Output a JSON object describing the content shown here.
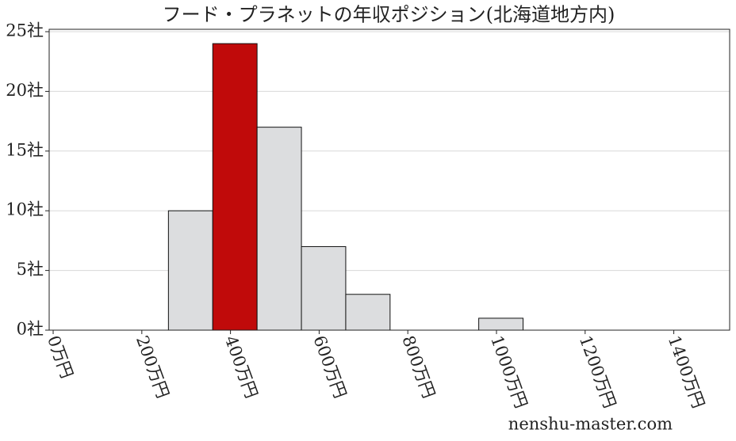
{
  "chart_data": {
    "type": "histogram",
    "title": "フード・プラネットの年収ポジション(北海道地方内)",
    "bins": [
      260,
      360,
      460,
      560,
      660,
      760,
      860,
      960,
      1060
    ],
    "values": [
      10,
      24,
      17,
      7,
      3,
      0,
      0,
      1
    ],
    "colors": [
      "#dcdddf",
      "#c00a0a",
      "#dcdddf",
      "#dcdddf",
      "#dcdddf",
      "#dcdddf",
      "#dcdddf",
      "#dcdddf"
    ],
    "xlim": [
      -9,
      1526
    ],
    "xticks": [
      {
        "value": 0,
        "label": "0万円"
      },
      {
        "value": 200,
        "label": "200万円"
      },
      {
        "value": 400,
        "label": "400万円"
      },
      {
        "value": 600,
        "label": "600万円"
      },
      {
        "value": 800,
        "label": "800万円"
      },
      {
        "value": 1000,
        "label": "1000万円"
      },
      {
        "value": 1200,
        "label": "1200万円"
      },
      {
        "value": 1400,
        "label": "1400万円"
      }
    ],
    "ylim": [
      0,
      25.2
    ],
    "yticks": [
      {
        "value": 0,
        "label": "0社"
      },
      {
        "value": 5,
        "label": "5社"
      },
      {
        "value": 10,
        "label": "10社"
      },
      {
        "value": 15,
        "label": "15社"
      },
      {
        "value": 20,
        "label": "20社"
      },
      {
        "value": 25,
        "label": "25社"
      }
    ],
    "grid": true,
    "watermark": "nenshu-master.com"
  }
}
